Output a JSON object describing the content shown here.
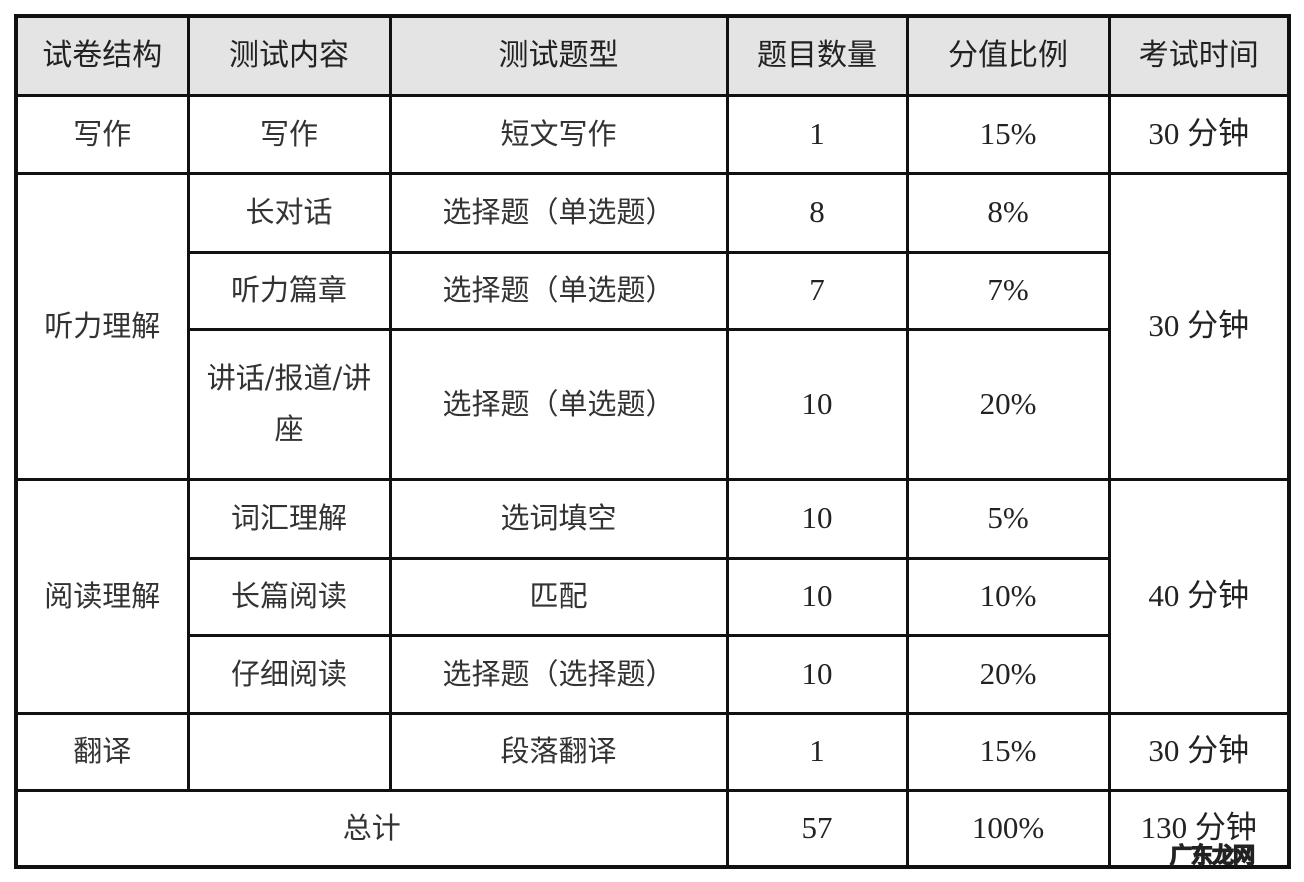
{
  "header": [
    "试卷结构",
    "测试内容",
    "测试题型",
    "题目数量",
    "分值比例",
    "考试时间"
  ],
  "sections": {
    "writing": {
      "name": "写作",
      "time": "30 分钟",
      "rows": [
        {
          "content": "写作",
          "type": "短文写作",
          "count": "1",
          "ratio": "15%"
        }
      ]
    },
    "listening": {
      "name": "听力理解",
      "time": "30 分钟",
      "rows": [
        {
          "content": "长对话",
          "type": "选择题（单选题）",
          "count": "8",
          "ratio": "8%"
        },
        {
          "content": "听力篇章",
          "type": "选择题（单选题）",
          "count": "7",
          "ratio": "7%"
        },
        {
          "content": "讲话/报道/讲座",
          "type": "选择题（单选题）",
          "count": "10",
          "ratio": "20%"
        }
      ]
    },
    "reading": {
      "name": "阅读理解",
      "time": "40 分钟",
      "rows": [
        {
          "content": "词汇理解",
          "type": "选词填空",
          "count": "10",
          "ratio": "5%"
        },
        {
          "content": "长篇阅读",
          "type": "匹配",
          "count": "10",
          "ratio": "10%"
        },
        {
          "content": "仔细阅读",
          "type": "选择题（选择题）",
          "count": "10",
          "ratio": "20%"
        }
      ]
    },
    "translation": {
      "name": "翻译",
      "time": "30 分钟",
      "rows": [
        {
          "content": "",
          "type": "段落翻译",
          "count": "1",
          "ratio": "15%"
        }
      ]
    }
  },
  "total": {
    "label": "总计",
    "count": "57",
    "ratio": "100%",
    "time": "130 分钟"
  },
  "watermark": "广东龙网"
}
